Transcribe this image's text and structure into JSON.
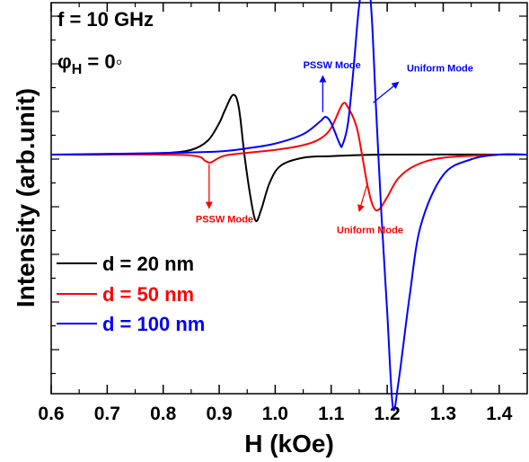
{
  "chart_data": {
    "type": "line",
    "xlabel": "H (kOe)",
    "ylabel": "Intensity (arb.unit)",
    "xlim": [
      0.6,
      1.45
    ],
    "ylim": [
      -1.0,
      1.0
    ],
    "x_ticks": [
      "0.6",
      "0.7",
      "0.8",
      "0.9",
      "1.0",
      "1.1",
      "1.2",
      "1.3",
      "1.4"
    ],
    "grid": false,
    "legend_position": "lower-left",
    "info": {
      "line1": "f = 10 GHz",
      "phi_symbol": "φ",
      "phi_sub": "H",
      "phi_rest": " = 0◦"
    },
    "series": [
      {
        "name": "d =  20 nm",
        "color": "#000000",
        "points": [
          [
            0.6,
            0.0
          ],
          [
            0.7,
            0.0
          ],
          [
            0.8,
            0.01
          ],
          [
            0.85,
            0.03
          ],
          [
            0.88,
            0.09
          ],
          [
            0.9,
            0.2
          ],
          [
            0.91,
            0.28
          ],
          [
            0.925,
            0.38
          ],
          [
            0.935,
            0.3
          ],
          [
            0.945,
            0.0
          ],
          [
            0.955,
            -0.25
          ],
          [
            0.965,
            -0.42
          ],
          [
            0.975,
            -0.35
          ],
          [
            0.99,
            -0.18
          ],
          [
            1.01,
            -0.07
          ],
          [
            1.05,
            -0.02
          ],
          [
            1.1,
            -0.01
          ],
          [
            1.2,
            0.0
          ],
          [
            1.45,
            0.0
          ]
        ]
      },
      {
        "name": "d =  50 nm",
        "color": "#ff0000",
        "points": [
          [
            0.6,
            0.0
          ],
          [
            0.8,
            0.0
          ],
          [
            0.86,
            -0.01
          ],
          [
            0.875,
            -0.04
          ],
          [
            0.885,
            -0.05
          ],
          [
            0.9,
            -0.02
          ],
          [
            0.92,
            0.0
          ],
          [
            1.0,
            0.03
          ],
          [
            1.05,
            0.06
          ],
          [
            1.08,
            0.1
          ],
          [
            1.1,
            0.17
          ],
          [
            1.12,
            0.32
          ],
          [
            1.13,
            0.3
          ],
          [
            1.145,
            0.18
          ],
          [
            1.155,
            0.0
          ],
          [
            1.165,
            -0.2
          ],
          [
            1.175,
            -0.33
          ],
          [
            1.185,
            -0.35
          ],
          [
            1.2,
            -0.27
          ],
          [
            1.22,
            -0.15
          ],
          [
            1.25,
            -0.07
          ],
          [
            1.3,
            -0.02
          ],
          [
            1.4,
            0.0
          ],
          [
            1.45,
            0.0
          ]
        ]
      },
      {
        "name": "d = 100 nm",
        "color": "#0000ff",
        "points": [
          [
            0.6,
            0.0
          ],
          [
            0.8,
            0.01
          ],
          [
            0.9,
            0.02
          ],
          [
            0.95,
            0.04
          ],
          [
            1.0,
            0.07
          ],
          [
            1.05,
            0.13
          ],
          [
            1.08,
            0.21
          ],
          [
            1.09,
            0.24
          ],
          [
            1.1,
            0.2
          ],
          [
            1.115,
            0.07
          ],
          [
            1.12,
            0.06
          ],
          [
            1.13,
            0.2
          ],
          [
            1.14,
            0.55
          ],
          [
            1.15,
            0.95
          ],
          [
            1.163,
            1.2
          ],
          [
            1.172,
            0.9
          ],
          [
            1.18,
            0.3
          ],
          [
            1.19,
            -0.4
          ],
          [
            1.2,
            -1.0
          ],
          [
            1.21,
            -1.6
          ],
          [
            1.22,
            -1.45
          ],
          [
            1.24,
            -0.9
          ],
          [
            1.26,
            -0.45
          ],
          [
            1.3,
            -0.13
          ],
          [
            1.35,
            -0.03
          ],
          [
            1.4,
            0.0
          ],
          [
            1.45,
            0.0
          ]
        ]
      }
    ],
    "annotations": [
      {
        "text": "PSSW Mode",
        "color": "#ff0000",
        "arrow_from": [
          0.882,
          -0.06
        ],
        "arrow_to": [
          0.882,
          -0.34
        ],
        "text_at": [
          0.858,
          -0.43
        ]
      },
      {
        "text": "Uniform Mode",
        "color": "#ff0000",
        "arrow_from": [
          1.165,
          -0.18
        ],
        "arrow_to": [
          1.15,
          -0.36
        ],
        "text_at": [
          1.11,
          -0.5
        ]
      },
      {
        "text": "PSSW Mode",
        "color": "#0000ff",
        "arrow_from": [
          1.085,
          0.27
        ],
        "arrow_to": [
          1.085,
          0.5
        ],
        "text_at": [
          1.05,
          0.55
        ]
      },
      {
        "text": "Uniform Mode",
        "color": "#0000ff",
        "arrow_from": [
          1.175,
          0.33
        ],
        "arrow_to": [
          1.22,
          0.46
        ],
        "text_at": [
          1.235,
          0.53
        ]
      }
    ]
  }
}
